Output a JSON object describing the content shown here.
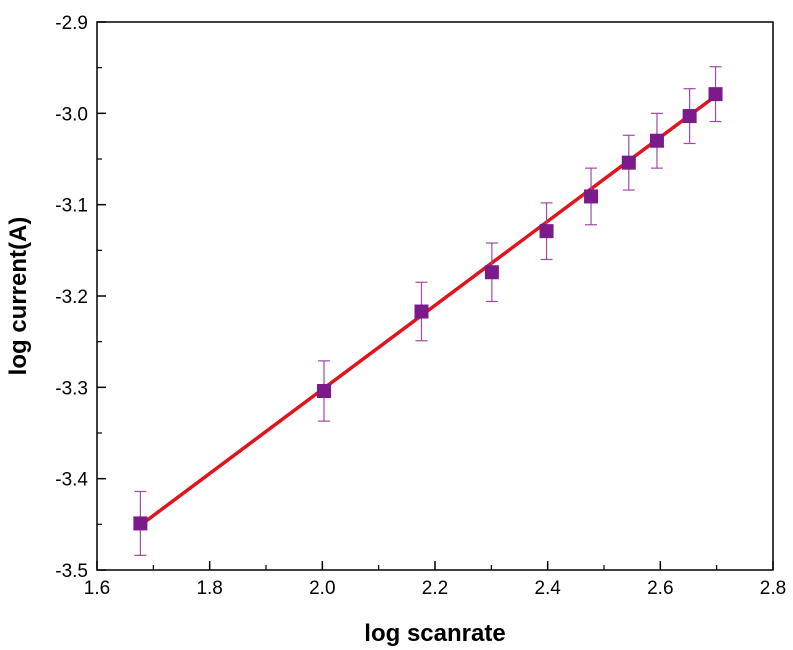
{
  "chart_data": {
    "type": "scatter",
    "title": "",
    "xlabel": "log scanrate",
    "ylabel": "log current(A)",
    "xlim": [
      1.6,
      2.8
    ],
    "ylim": [
      -3.5,
      -2.9
    ],
    "x_ticks": [
      "1.6",
      "1.8",
      "2.0",
      "2.2",
      "2.4",
      "2.6",
      "2.8"
    ],
    "y_ticks": [
      "-3.5",
      "-3.4",
      "-3.3",
      "-3.2",
      "-3.1",
      "-3.0",
      "-2.9"
    ],
    "grid": false,
    "legend": "none",
    "series": [
      {
        "marker": "square",
        "color": "#7b1a8a",
        "error_bar_color": "#a04aa8",
        "points": [
          {
            "x": 1.677,
            "y": -3.449,
            "err": 0.035
          },
          {
            "x": 2.003,
            "y": -3.304,
            "err": 0.033
          },
          {
            "x": 2.176,
            "y": -3.217,
            "err": 0.032
          },
          {
            "x": 2.301,
            "y": -3.174,
            "err": 0.032
          },
          {
            "x": 2.398,
            "y": -3.129,
            "err": 0.031
          },
          {
            "x": 2.477,
            "y": -3.091,
            "err": 0.031
          },
          {
            "x": 2.544,
            "y": -3.054,
            "err": 0.03
          },
          {
            "x": 2.594,
            "y": -3.03,
            "err": 0.03
          },
          {
            "x": 2.652,
            "y": -3.003,
            "err": 0.03
          },
          {
            "x": 2.698,
            "y": -2.979,
            "err": 0.03
          }
        ]
      }
    ],
    "fit_line": {
      "color": "#e0141c",
      "x": [
        1.677,
        2.698
      ],
      "y": [
        -3.451,
        -2.981
      ]
    }
  }
}
